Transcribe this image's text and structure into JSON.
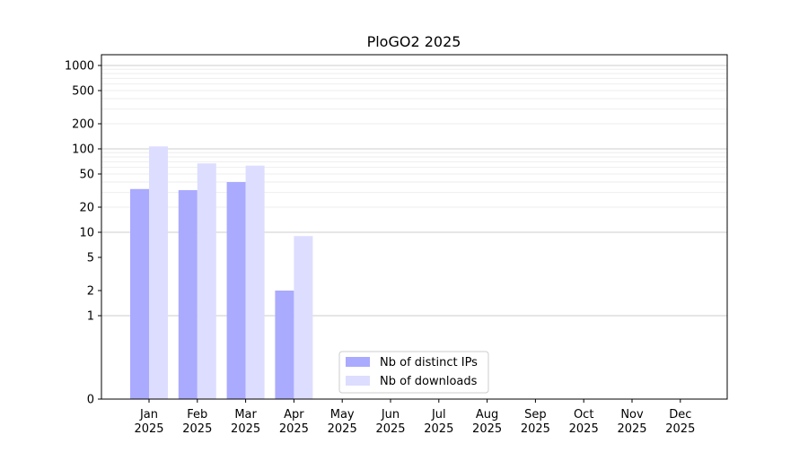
{
  "chart_data": {
    "type": "bar",
    "title": "PloGO2 2025",
    "categories": [
      [
        "Jan",
        "2025"
      ],
      [
        "Feb",
        "2025"
      ],
      [
        "Mar",
        "2025"
      ],
      [
        "Apr",
        "2025"
      ],
      [
        "May",
        "2025"
      ],
      [
        "Jun",
        "2025"
      ],
      [
        "Jul",
        "2025"
      ],
      [
        "Aug",
        "2025"
      ],
      [
        "Sep",
        "2025"
      ],
      [
        "Oct",
        "2025"
      ],
      [
        "Nov",
        "2025"
      ],
      [
        "Dec",
        "2025"
      ]
    ],
    "series": [
      {
        "name": "Nb of distinct IPs",
        "color": "#aaaaff",
        "values": [
          33,
          32,
          40,
          2,
          0,
          0,
          0,
          0,
          0,
          0,
          0,
          0
        ]
      },
      {
        "name": "Nb of downloads",
        "color": "#ddddff",
        "values": [
          107,
          67,
          63,
          9,
          0,
          0,
          0,
          0,
          0,
          0,
          0,
          0
        ]
      }
    ],
    "y_scale": "symlog",
    "y_ticks": [
      0,
      1,
      2,
      5,
      10,
      20,
      50,
      100,
      200,
      500,
      1000
    ],
    "ylim": [
      0,
      1300
    ],
    "grid": "y-major-and-minor",
    "legend_position": "bottom-center"
  }
}
